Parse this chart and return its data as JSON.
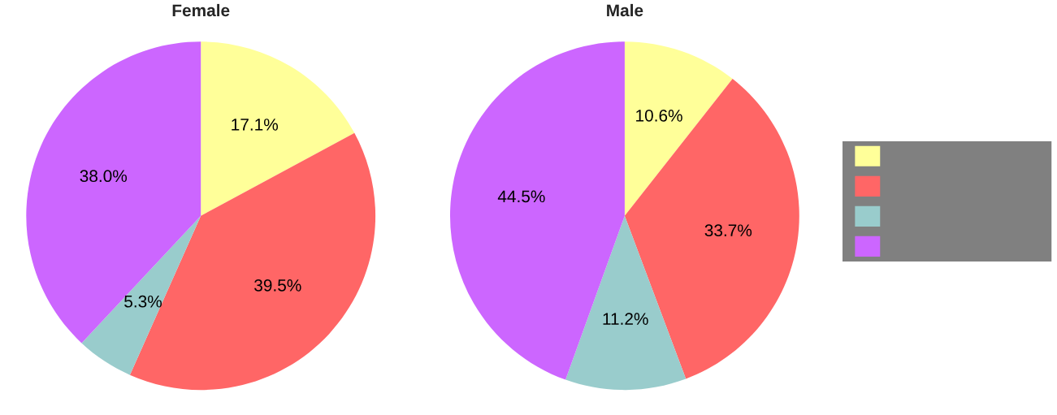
{
  "chart_data": [
    {
      "type": "pie",
      "title": "Female",
      "categories": [
        null,
        null,
        null,
        null
      ],
      "values": [
        17.1,
        39.5,
        5.3,
        38.0
      ],
      "value_labels": [
        "17.1%",
        "39.5%",
        "5.3%",
        "38.0%"
      ],
      "colors": [
        "#ffff99",
        "#ff6666",
        "#99cccc",
        "#cc66ff"
      ]
    },
    {
      "type": "pie",
      "title": "Male",
      "categories": [
        null,
        null,
        null,
        null
      ],
      "values": [
        10.6,
        33.7,
        11.2,
        44.5
      ],
      "value_labels": [
        "10.6%",
        "33.7%",
        "11.2%",
        "44.5%"
      ],
      "colors": [
        "#ffff99",
        "#ff6666",
        "#99cccc",
        "#cc66ff"
      ]
    }
  ]
}
